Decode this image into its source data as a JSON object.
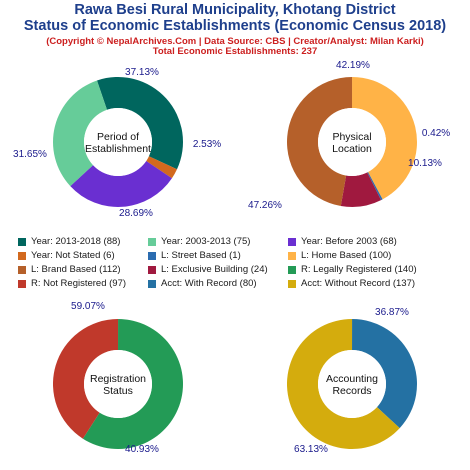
{
  "header": {
    "title": "Rawa Besi Rural Municipality, Khotang District",
    "subtitle": "Status of Economic Establishments (Economic Census 2018)",
    "copyright": "(Copyright © NepalArchives.Com | Data Source: CBS | Creator/Analyst: Milan Karki)",
    "total": "Total Economic Establishments: 237"
  },
  "chart_data": [
    {
      "type": "pie",
      "center_label": [
        "Period of",
        "Establishment"
      ],
      "slices": [
        {
          "label": "Year: 2013-2018",
          "value": 88,
          "pct_label": "37.13%",
          "color": "#00665e"
        },
        {
          "label": "Year: Not Stated",
          "value": 6,
          "pct_label": "2.53%",
          "color": "#d2691e"
        },
        {
          "label": "Year: Before 2003",
          "value": 68,
          "pct_label": "28.69%",
          "color": "#6a2fd1"
        },
        {
          "label": "Year: 2003-2013",
          "value": 75,
          "pct_label": "31.65%",
          "color": "#66cc99"
        }
      ]
    },
    {
      "type": "pie",
      "center_label": [
        "Physical",
        "Location"
      ],
      "slices": [
        {
          "label": "L: Home Based",
          "value": 100,
          "pct_label": "42.19%",
          "color": "#ffb347"
        },
        {
          "label": "L: Street Based",
          "value": 1,
          "pct_label": "0.42%",
          "color": "#2b6cb0"
        },
        {
          "label": "L: Exclusive Building",
          "value": 24,
          "pct_label": "10.13%",
          "color": "#a0193f"
        },
        {
          "label": "L: Brand Based",
          "value": 112,
          "pct_label": "47.26%",
          "color": "#b5602a"
        }
      ]
    },
    {
      "type": "pie",
      "center_label": [
        "Registration",
        "Status"
      ],
      "slices": [
        {
          "label": "R: Legally Registered",
          "value": 140,
          "pct_label": "59.07%",
          "color": "#239b56"
        },
        {
          "label": "R: Not Registered",
          "value": 97,
          "pct_label": "40.93%",
          "color": "#c0392b"
        }
      ]
    },
    {
      "type": "pie",
      "center_label": [
        "Accounting",
        "Records"
      ],
      "slices": [
        {
          "label": "Acct: With Record",
          "value": 80,
          "pct_label": "36.87%",
          "color": "#2471a3"
        },
        {
          "label": "Acct: Without Record",
          "value": 137,
          "pct_label": "63.13%",
          "color": "#d4ac0d"
        }
      ]
    }
  ],
  "legend": [
    {
      "label": "Year: 2013-2018 (88)",
      "color": "#00665e"
    },
    {
      "label": "Year: 2003-2013 (75)",
      "color": "#66cc99"
    },
    {
      "label": "Year: Before 2003 (68)",
      "color": "#6a2fd1"
    },
    {
      "label": "Year: Not Stated (6)",
      "color": "#d2691e"
    },
    {
      "label": "L: Street Based (1)",
      "color": "#2b6cb0"
    },
    {
      "label": "L: Home Based (100)",
      "color": "#ffb347"
    },
    {
      "label": "L: Brand Based (112)",
      "color": "#b5602a"
    },
    {
      "label": "L: Exclusive Building (24)",
      "color": "#a0193f"
    },
    {
      "label": "R: Legally Registered (140)",
      "color": "#239b56"
    },
    {
      "label": "R: Not Registered (97)",
      "color": "#c0392b"
    },
    {
      "label": "Acct: With Record (80)",
      "color": "#2471a3"
    },
    {
      "label": "Acct: Without Record (137)",
      "color": "#d4ac0d"
    }
  ]
}
